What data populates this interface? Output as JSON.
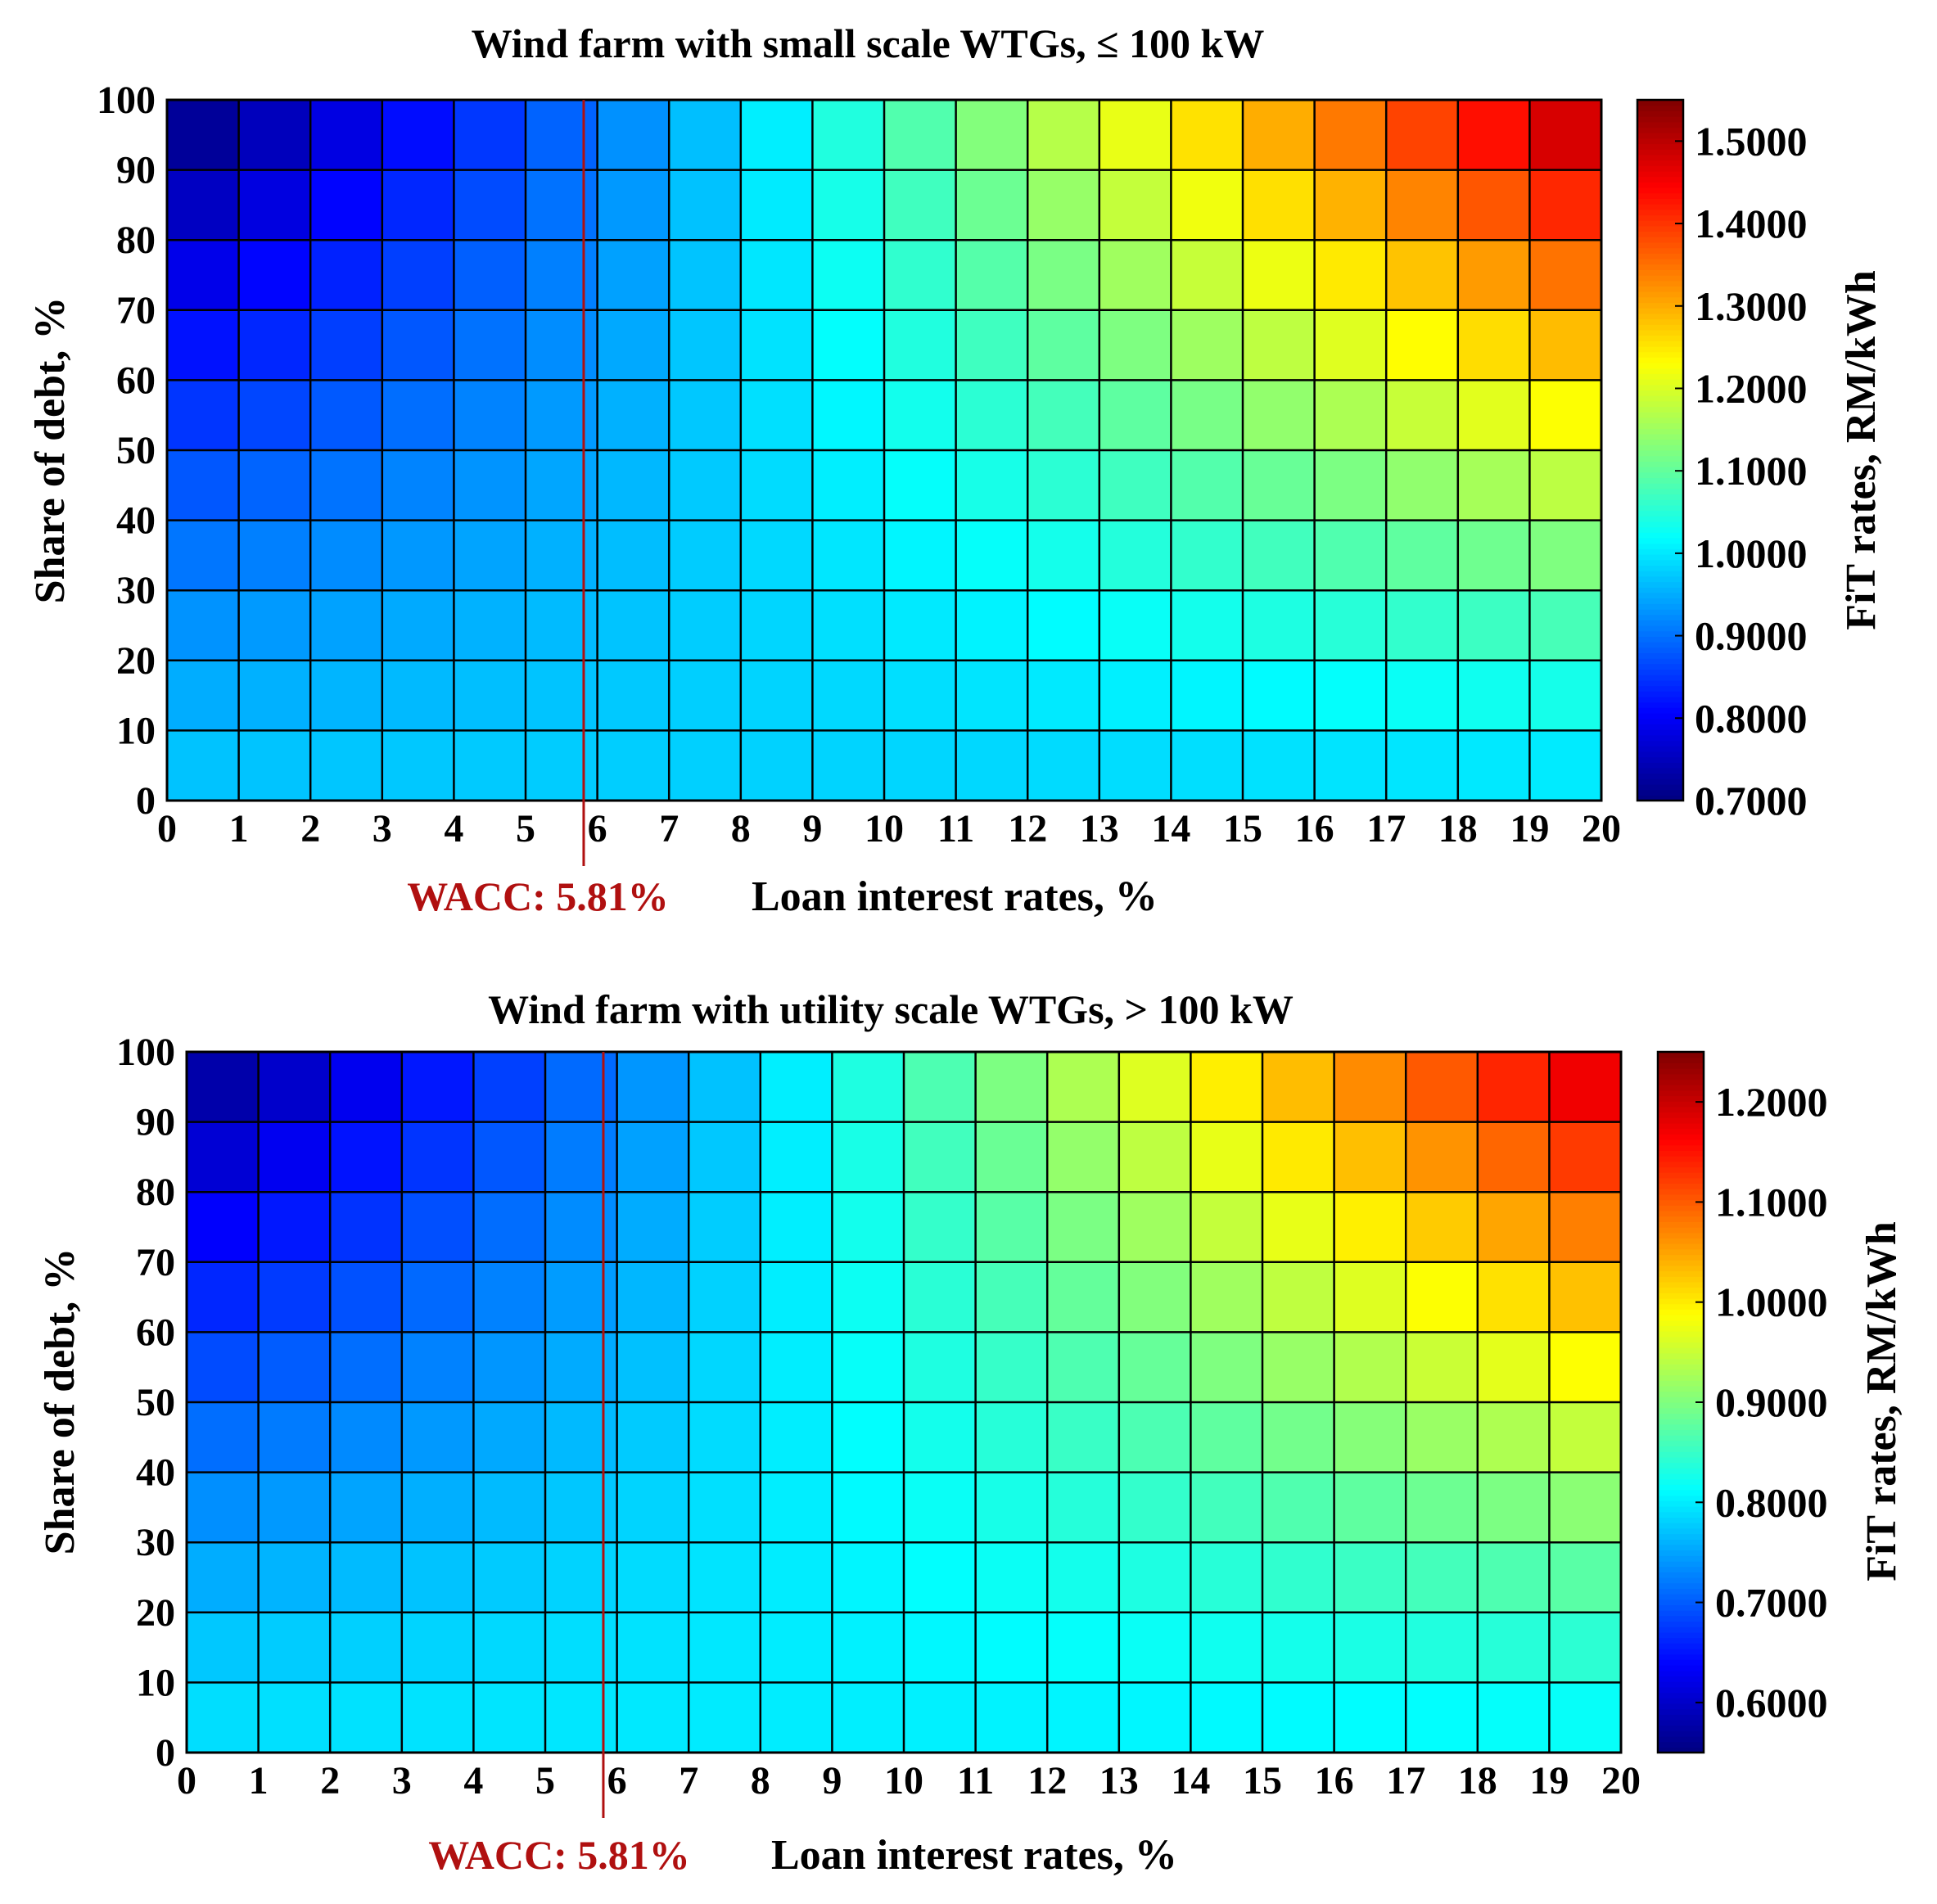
{
  "chart_data": [
    {
      "type": "heatmap",
      "title": "Wind farm with small scale WTGs, ≤ 100 kW",
      "xlabel": "Loan interest rates, %",
      "ylabel": "Share of debt, %",
      "colorbar_label": "FiT rates, RM/kWh",
      "colormap": "jet",
      "xlim": [
        0,
        20
      ],
      "ylim": [
        0,
        100
      ],
      "x_ticks": [
        "0",
        "1",
        "2",
        "3",
        "4",
        "5",
        "6",
        "7",
        "8",
        "9",
        "10",
        "11",
        "12",
        "13",
        "14",
        "15",
        "16",
        "17",
        "18",
        "19",
        "20"
      ],
      "y_ticks": [
        "0",
        "10",
        "20",
        "30",
        "40",
        "50",
        "60",
        "70",
        "80",
        "90",
        "100"
      ],
      "colorbar_range": [
        0.7,
        1.55
      ],
      "colorbar_ticks": [
        "0.7000",
        "0.8000",
        "0.9000",
        "1.0000",
        "1.1000",
        "1.2000",
        "1.3000",
        "1.4000",
        "1.5000"
      ],
      "colorbar_tick_values": [
        0.7,
        0.8,
        0.9,
        1.0,
        1.1,
        1.2,
        1.3,
        1.4,
        1.5
      ],
      "grid": true,
      "marker_line": {
        "x": 5.81,
        "label": "WACC: 5.81%",
        "color": "#b01010"
      },
      "base_value": 0.98,
      "low_value": 0.71,
      "high_value": 1.5
    },
    {
      "type": "heatmap",
      "title": "Wind farm with utility scale WTGs, > 100 kW",
      "xlabel": "Loan interest rates, %",
      "ylabel": "Share of debt, %",
      "colorbar_label": "FiT rates, RM/kWh",
      "colormap": "jet",
      "xlim": [
        0,
        20
      ],
      "ylim": [
        0,
        100
      ],
      "x_ticks": [
        "0",
        "1",
        "2",
        "3",
        "4",
        "5",
        "6",
        "7",
        "8",
        "9",
        "10",
        "11",
        "12",
        "13",
        "14",
        "15",
        "16",
        "17",
        "18",
        "19",
        "20"
      ],
      "y_ticks": [
        "0",
        "10",
        "20",
        "30",
        "40",
        "50",
        "60",
        "70",
        "80",
        "90",
        "100"
      ],
      "colorbar_range": [
        0.55,
        1.25
      ],
      "colorbar_ticks": [
        "0.6000",
        "0.7000",
        "0.8000",
        "0.9000",
        "1.0000",
        "1.1000",
        "1.2000"
      ],
      "colorbar_tick_values": [
        0.6,
        0.7,
        0.8,
        0.9,
        1.0,
        1.1,
        1.2
      ],
      "grid": true,
      "marker_line": {
        "x": 5.81,
        "label": "WACC: 5.81%",
        "color": "#b01010"
      },
      "base_value": 0.8,
      "low_value": 0.57,
      "high_value": 1.19
    }
  ]
}
